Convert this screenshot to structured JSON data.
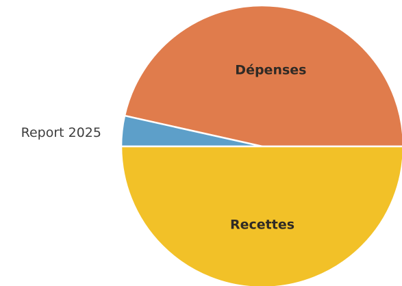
{
  "chart_data": {
    "type": "pie",
    "title": "",
    "slices": [
      {
        "label": "Dépenses",
        "value": 46.5,
        "color": "#e07c4c",
        "label_placement": "inside"
      },
      {
        "label": "Report 2025",
        "value": 3.5,
        "color": "#5d9fc9",
        "label_placement": "outside-left"
      },
      {
        "label": "Recettes",
        "value": 50.0,
        "color": "#f2c128",
        "label_placement": "inside"
      }
    ]
  }
}
